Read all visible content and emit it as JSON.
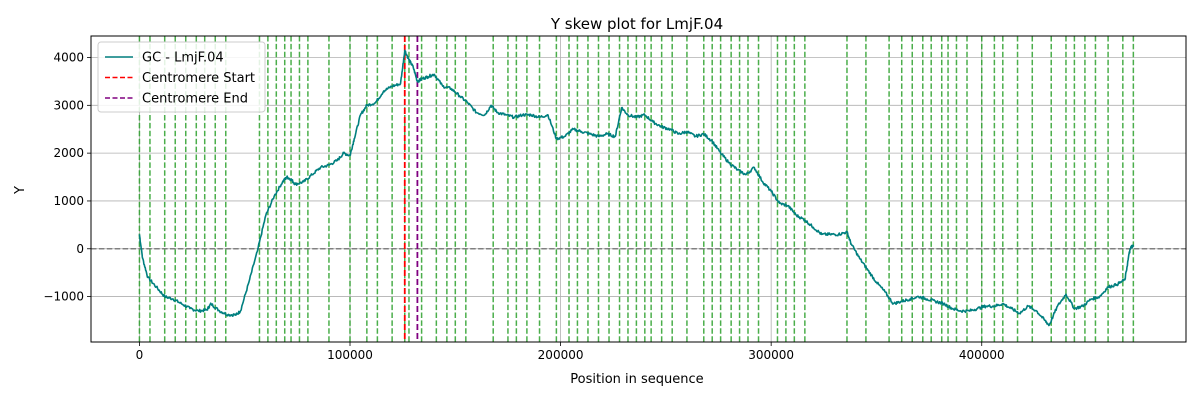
{
  "chart_data": {
    "type": "line",
    "title": "Y skew plot for LmjF.04",
    "xlabel": "Position in sequence",
    "ylabel": "Y",
    "xlim": [
      -23000,
      497000
    ],
    "ylim": [
      -1950,
      4450
    ],
    "x_ticks": [
      0,
      100000,
      200000,
      300000,
      400000
    ],
    "x_tick_labels": [
      "0",
      "100000",
      "200000",
      "300000",
      "400000"
    ],
    "y_ticks": [
      -1000,
      0,
      1000,
      2000,
      3000,
      4000
    ],
    "y_tick_labels": [
      "−1000",
      "0",
      "1000",
      "2000",
      "3000",
      "4000"
    ],
    "grid": true,
    "legend_position": "top-left",
    "series": [
      {
        "name": "GC - LmjF.04",
        "color": "#007f7f",
        "x": [
          0,
          1500,
          4000,
          8000,
          12000,
          16000,
          20000,
          24000,
          28000,
          32000,
          34000,
          38000,
          42000,
          46000,
          48000,
          52000,
          56000,
          60000,
          64000,
          68000,
          70000,
          72000,
          74000,
          78000,
          82000,
          86000,
          90000,
          94000,
          97000,
          100000,
          102000,
          105000,
          108000,
          112000,
          116000,
          120000,
          124000,
          126000,
          128000,
          130000,
          132000,
          134000,
          137000,
          140000,
          144000,
          148000,
          152000,
          156000,
          160000,
          164000,
          167000,
          170000,
          174000,
          178000,
          182000,
          186000,
          190000,
          194000,
          198000,
          202000,
          206000,
          210000,
          214000,
          218000,
          222000,
          226000,
          229000,
          232000,
          236000,
          240000,
          244000,
          248000,
          252000,
          256000,
          260000,
          264000,
          268000,
          272000,
          276000,
          280000,
          284000,
          288000,
          292000,
          296000,
          300000,
          304000,
          308000,
          312000,
          316000,
          320000,
          324000,
          328000,
          332000,
          336000,
          338000,
          342000,
          346000,
          350000,
          354000,
          358000,
          362000,
          366000,
          370000,
          374000,
          378000,
          382000,
          386000,
          390000,
          394000,
          398000,
          402000,
          406000,
          410000,
          414000,
          418000,
          422000,
          426000,
          430000,
          432000,
          436000,
          440000,
          444000,
          448000,
          452000,
          456000,
          460000,
          464000,
          468000,
          470000,
          471000,
          472000
        ],
        "y": [
          300,
          -200,
          -600,
          -800,
          -1000,
          -1050,
          -1150,
          -1250,
          -1300,
          -1280,
          -1150,
          -1300,
          -1380,
          -1380,
          -1300,
          -700,
          -50,
          700,
          1100,
          1400,
          1500,
          1450,
          1350,
          1400,
          1550,
          1700,
          1750,
          1850,
          2000,
          1950,
          2300,
          2800,
          3000,
          3050,
          3300,
          3400,
          3450,
          4150,
          3950,
          3800,
          3500,
          3550,
          3600,
          3650,
          3400,
          3350,
          3200,
          3050,
          2850,
          2800,
          3000,
          2850,
          2800,
          2750,
          2800,
          2800,
          2750,
          2800,
          2300,
          2350,
          2500,
          2450,
          2400,
          2350,
          2400,
          2350,
          2950,
          2800,
          2750,
          2800,
          2650,
          2550,
          2500,
          2400,
          2450,
          2350,
          2400,
          2250,
          2000,
          1800,
          1650,
          1550,
          1700,
          1400,
          1200,
          950,
          900,
          700,
          600,
          450,
          300,
          300,
          300,
          350,
          100,
          -200,
          -450,
          -700,
          -900,
          -1150,
          -1100,
          -1050,
          -1000,
          -1050,
          -1100,
          -1150,
          -1250,
          -1300,
          -1300,
          -1250,
          -1200,
          -1200,
          -1150,
          -1250,
          -1350,
          -1200,
          -1300,
          -1500,
          -1600,
          -1200,
          -950,
          -1250,
          -1200,
          -1050,
          -1000,
          -800,
          -750,
          -650,
          -100,
          50,
          50
        ]
      },
      {
        "name": "Centromere Start",
        "color": "#ff0000",
        "x": [
          126000
        ]
      },
      {
        "name": "Centromere End",
        "color": "#800080",
        "x": [
          132000
        ]
      }
    ],
    "annotation_lines": {
      "color": "#2ca02c",
      "x": [
        0,
        5000,
        12000,
        17000,
        22000,
        27000,
        31000,
        36000,
        41000,
        57000,
        61000,
        65000,
        69000,
        72000,
        76000,
        80000,
        90000,
        100000,
        108000,
        113000,
        120000,
        126000,
        128000,
        134000,
        141000,
        146000,
        150000,
        155000,
        168000,
        175000,
        179000,
        184000,
        190000,
        198000,
        204000,
        208000,
        213000,
        218000,
        223000,
        228000,
        232000,
        236000,
        240000,
        243000,
        248000,
        253000,
        260000,
        268000,
        272000,
        276000,
        281000,
        285000,
        289000,
        294000,
        303000,
        307000,
        311000,
        316000,
        336000,
        345000,
        356000,
        362000,
        367000,
        372000,
        376000,
        381000,
        384000,
        388000,
        393000,
        400000,
        406000,
        410000,
        417000,
        424000,
        433000,
        440000,
        444000,
        449000,
        454000,
        460000,
        467000,
        472000
      ]
    },
    "zero_line": 0
  }
}
